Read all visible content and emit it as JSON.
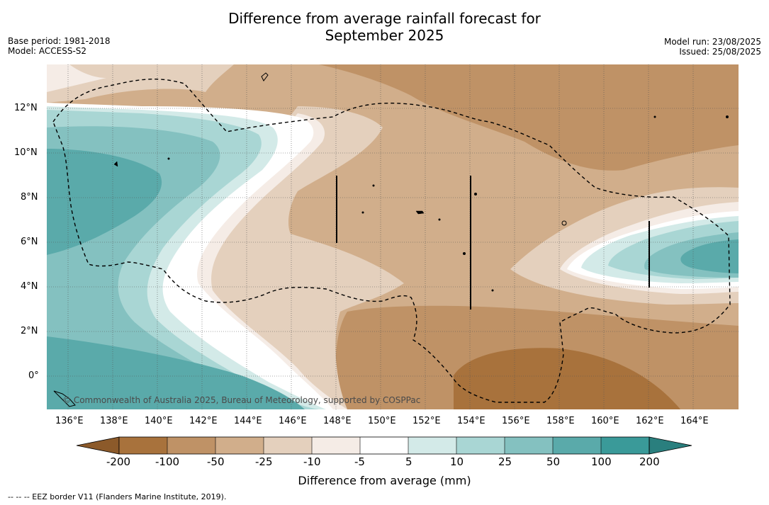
{
  "title_line1": "Difference from average rainfall forecast for",
  "title_line2": "September 2025",
  "base_period": "Base period: 1981-2018",
  "model": "Model: ACCESS-S2",
  "model_run": "Model run: 23/08/2025",
  "issued": "Issued: 25/08/2025",
  "lon_labels": [
    "136°E",
    "138°E",
    "140°E",
    "142°E",
    "144°E",
    "146°E",
    "148°E",
    "150°E",
    "152°E",
    "154°E",
    "156°E",
    "158°E",
    "160°E",
    "162°E",
    "164°E"
  ],
  "lat_labels": [
    "12°N",
    "10°N",
    "8°N",
    "6°N",
    "4°N",
    "2°N",
    "0°"
  ],
  "copyright": "© Commonwealth of Australia 2025, Bureau of Meteorology, supported by COSPPac",
  "colorbar": {
    "ticks": [
      "-200",
      "-100",
      "-50",
      "-25",
      "-10",
      "-5",
      "5",
      "10",
      "25",
      "50",
      "100",
      "200"
    ],
    "label": "Difference from average (mm)",
    "colors": [
      "#8c5a2a",
      "#a8723c",
      "#bf9266",
      "#d1ae8b",
      "#e4d0bd",
      "#f5ece6",
      "#ffffff",
      "#d3eae8",
      "#a9d6d4",
      "#84c1c0",
      "#5aaaaa",
      "#3a9a99",
      "#2a7f7e"
    ]
  },
  "footnote": "--  --  -- EEZ border V11 (Flanders Marine Institute, 2019)."
}
